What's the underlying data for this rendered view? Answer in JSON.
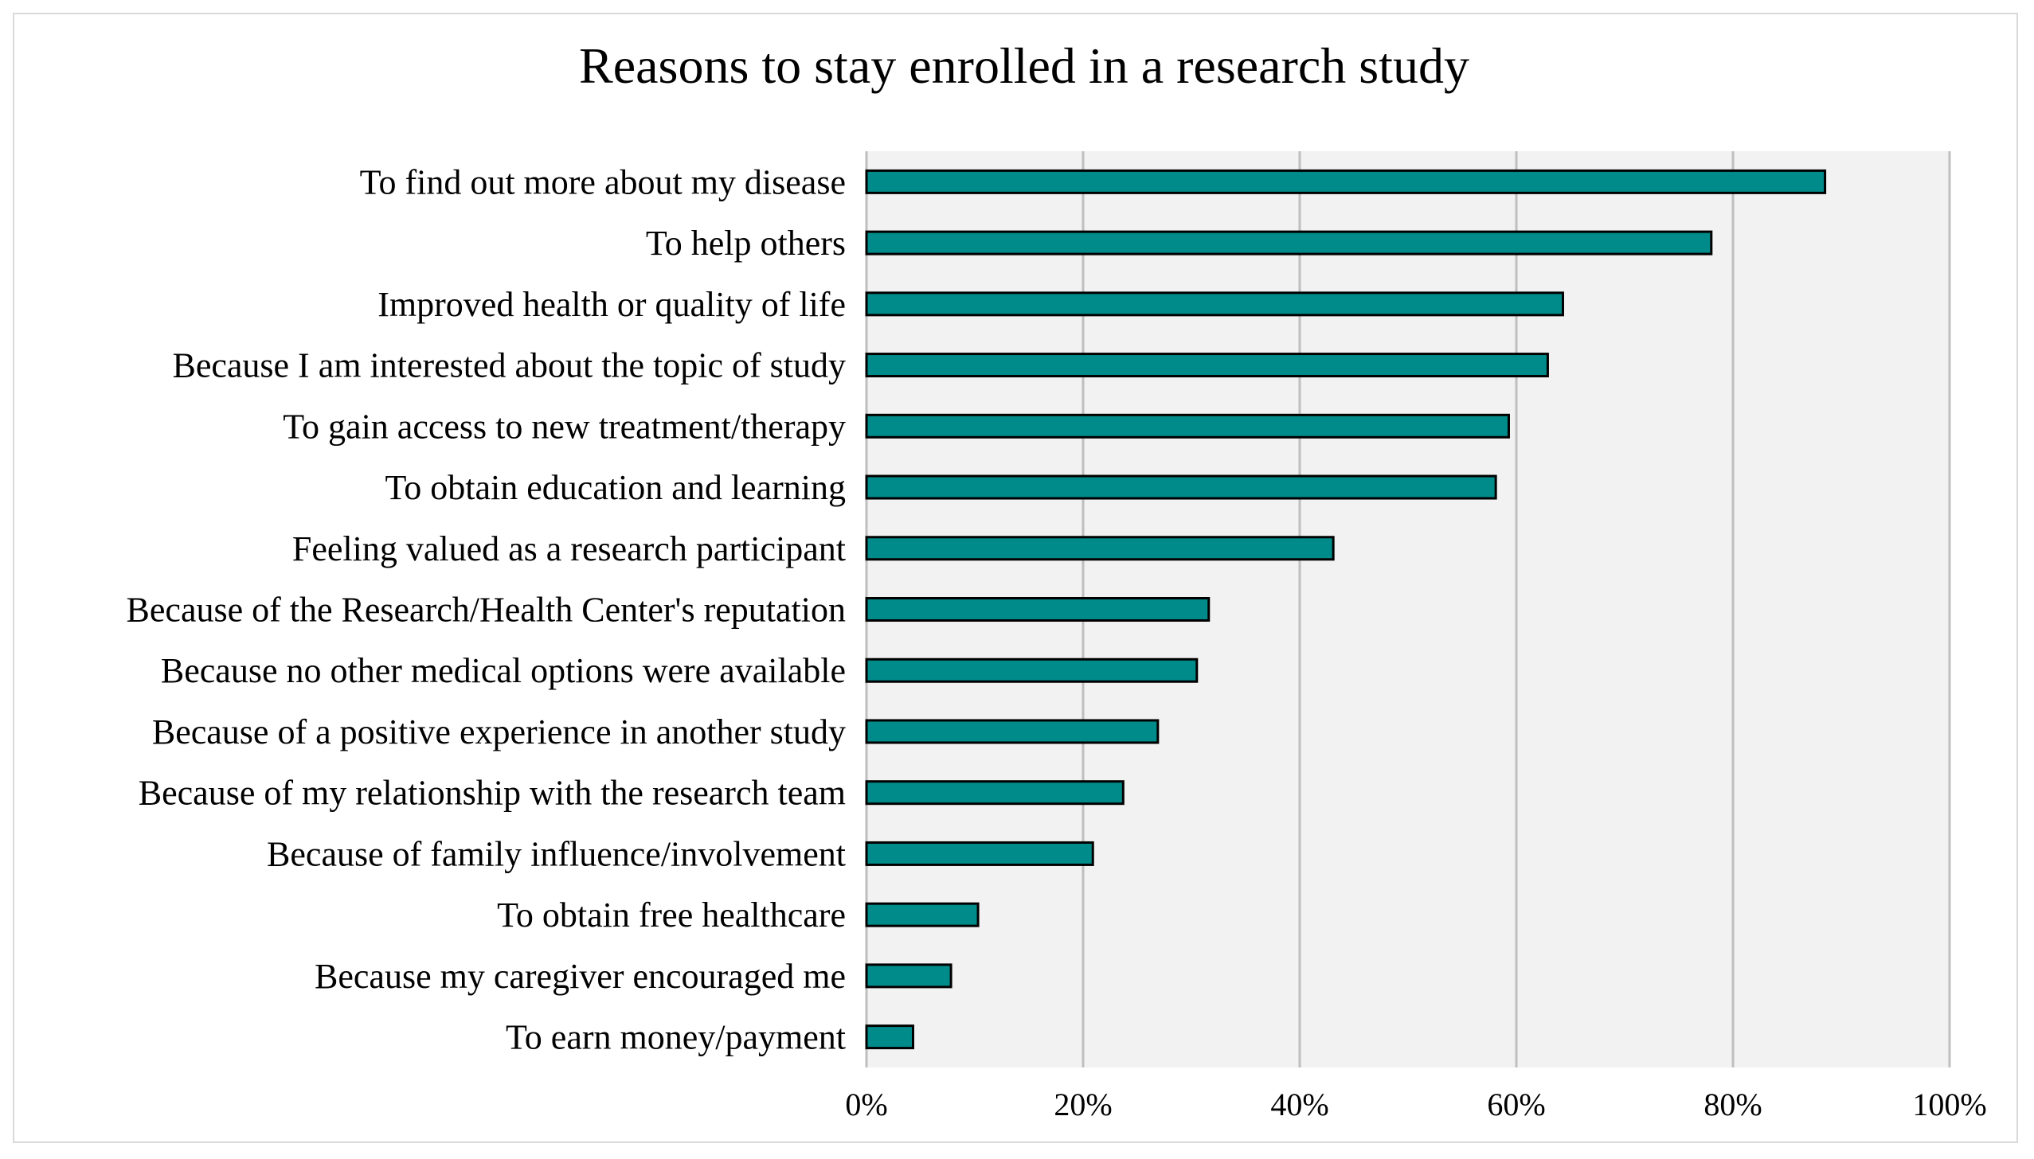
{
  "chart_data": {
    "type": "bar",
    "orientation": "horizontal",
    "title": "Reasons to stay enrolled in a research study",
    "xlabel": "",
    "ylabel": "",
    "xlim": [
      0,
      100
    ],
    "x_ticks": [
      "0%",
      "20%",
      "40%",
      "60%",
      "80%",
      "100%"
    ],
    "x_tick_values": [
      0,
      20,
      40,
      60,
      80,
      100
    ],
    "grid": true,
    "legend": "none",
    "colors": {
      "bar_fill": "#008B8B",
      "bar_stroke": "#000000",
      "plot_background": "#F2F2F2",
      "gridline": "#BFBFBF"
    },
    "categories": [
      "To find out more about my disease",
      "To help others",
      "Improved health or quality of life",
      "Because I am interested about the topic of study",
      "To gain access to new treatment/therapy",
      "To obtain education and learning",
      "Feeling valued as a research participant",
      "Because of the Research/Health Center's reputation",
      "Because no other medical options were available",
      "Because of a positive experience in another study",
      "Because of my relationship with the research team",
      "Because of family influence/involvement",
      "To obtain free healthcare",
      "Because my caregiver encouraged me",
      "To earn money/payment"
    ],
    "values": [
      88.5,
      78,
      64.3,
      62.9,
      59.3,
      58.1,
      43.1,
      31.6,
      30.5,
      26.9,
      23.7,
      20.9,
      10.3,
      7.8,
      4.3
    ]
  }
}
